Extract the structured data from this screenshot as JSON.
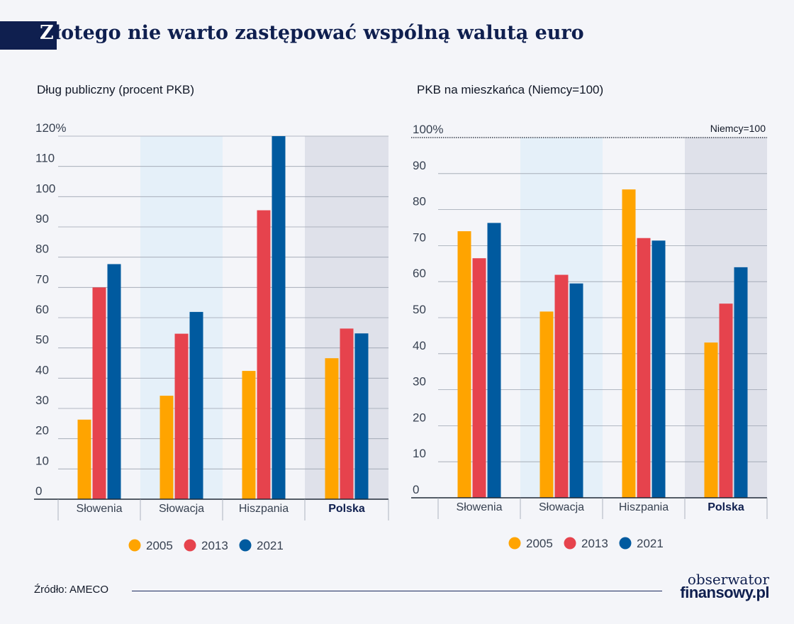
{
  "header": {
    "title_first": "Z",
    "title_rest": "łotego nie warto zastępować wspólną walutą euro"
  },
  "colors": {
    "2005": "#ffa400",
    "2013": "#e6434d",
    "2021": "#005a9f",
    "shade_slowacja": "#e5f0f9",
    "shade_polska": "#dfe1ea",
    "gridline": "#9ca3af",
    "axis": "#1f2937"
  },
  "legend": {
    "items": [
      "2005",
      "2013",
      "2021"
    ]
  },
  "chart_data": [
    {
      "type": "bar",
      "title": "Dług publiczny (procent PKB)",
      "categories": [
        "Słowenia",
        "Słowacja",
        "Hiszpania",
        "Polska"
      ],
      "highlight_category": "Polska",
      "shaded_categories": [
        "Słowacja",
        "Polska"
      ],
      "series": [
        {
          "name": "2005",
          "values": [
            26.3,
            34.2,
            42.4,
            46.6
          ]
        },
        {
          "name": "2013",
          "values": [
            70.0,
            54.7,
            95.5,
            56.4
          ]
        },
        {
          "name": "2021",
          "values": [
            77.7,
            61.9,
            120.5,
            54.8
          ]
        }
      ],
      "ylim": [
        0,
        120
      ],
      "yticks": [
        "0",
        "10",
        "20",
        "30",
        "40",
        "50",
        "60",
        "70",
        "80",
        "90",
        "100",
        "110",
        "120%"
      ],
      "grid": true,
      "legend_position": "bottom"
    },
    {
      "type": "bar",
      "title": "PKB na mieszkańca (Niemcy=100)",
      "categories": [
        "Słowenia",
        "Słowacja",
        "Hiszpania",
        "Polska"
      ],
      "highlight_category": "Polska",
      "shaded_categories": [
        "Słowacja",
        "Polska"
      ],
      "series": [
        {
          "name": "2005",
          "values": [
            74.0,
            51.7,
            85.6,
            43.1
          ]
        },
        {
          "name": "2013",
          "values": [
            66.5,
            61.9,
            72.1,
            53.9
          ]
        },
        {
          "name": "2021",
          "values": [
            76.3,
            59.5,
            71.4,
            64.0
          ]
        }
      ],
      "ylim": [
        0,
        100
      ],
      "yticks": [
        "0",
        "10",
        "20",
        "30",
        "40",
        "50",
        "60",
        "70",
        "80",
        "90",
        "100%"
      ],
      "reference_line": {
        "value": 100,
        "label": "Niemcy=100"
      },
      "grid": true,
      "legend_position": "bottom"
    }
  ],
  "footer": {
    "source": "Źródło: AMECO",
    "logo_line1": "obserwator",
    "logo_line2": "finansowy.pl"
  }
}
